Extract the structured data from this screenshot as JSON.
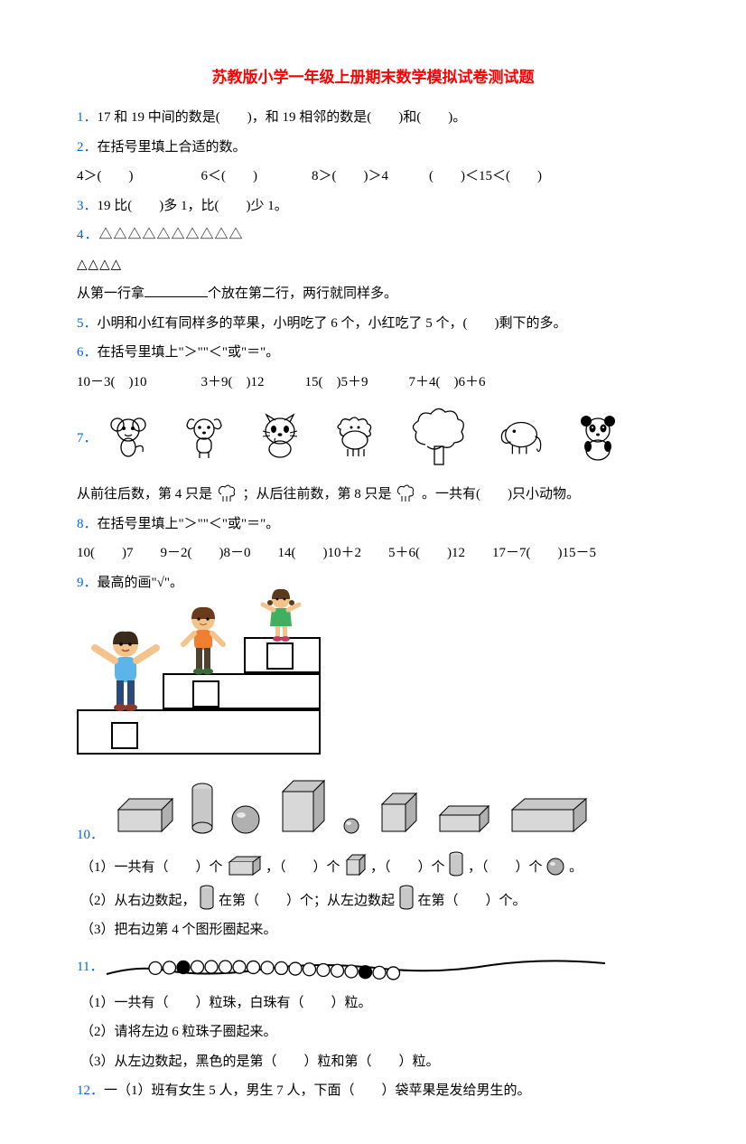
{
  "title": "苏教版小学一年级上册期末数学模拟试卷测试题",
  "accent_blue": "#0066dd",
  "accent_red": "#ff0000",
  "q1": {
    "num": "1．",
    "text": "17 和 19 中间的数是(　　)，和 19 相邻的数是(　　)和(　　)。"
  },
  "q2": {
    "num": "2．",
    "text": "在括号里填上合适的数。",
    "row": "4＞(　　)　　　　　6＜(　　)　　　　8＞(　　)＞4　　　(　　)＜15＜(　　)"
  },
  "q3": {
    "num": "3．",
    "text": "19 比(　　)多 1，比(　　)少 1。"
  },
  "q4": {
    "num": "4．",
    "row1": "△△△△△△△△△△",
    "row2": "△△△△",
    "line": "从第一行拿",
    "line_end": "个放在第二行，两行就同样多。"
  },
  "q5": {
    "num": "5．",
    "text": "小明和小红有同样多的苹果，小明吃了 6 个，小红吃了 5 个，(　　)剩下的多。"
  },
  "q6": {
    "num": "6．",
    "text": "在括号里填上\"＞\"\"＜\"或\"＝\"。",
    "row": "10－3(　)10　　　　3＋9(　)12　　　15(　)5＋9　　　7＋4(　)6＋6"
  },
  "q7": {
    "num": "7．",
    "text_a": "从前往后数，第 4 只是",
    "text_b": "；从后往前数，第 8 只是",
    "text_c": "。一共有(　　)只小动物。",
    "animals": [
      "monkey",
      "dog",
      "cat",
      "sheep",
      "tree",
      "elephant",
      "panda"
    ]
  },
  "q8": {
    "num": "8．",
    "text": "在括号里填上\"＞\"\"＜\"或\"＝\"。",
    "row": "10(　　)7　　9－2(　　)8－0　　14(　　)10＋2　　5＋6(　　)12　　17－7(　　)15－5"
  },
  "q9": {
    "num": "9．",
    "text": "最高的画\"√\"。"
  },
  "q10": {
    "num": "10．",
    "sub1_a": "（1）一共有（　　）个",
    "sub1_b": "，（　　）个",
    "sub1_c": "，（　　）个",
    "sub1_d": "，（　　）个",
    "sub1_e": "。",
    "sub2_a": "（2）从右边数起，",
    "sub2_b": "在第（　　）个；从左边数起",
    "sub2_c": "在第（　　）个。",
    "sub3": "（3）把右边第 4 个图形圈起来。"
  },
  "q11": {
    "num": "11．",
    "sub1": "（1）一共有（　　）粒珠，白珠有（　　）粒。",
    "sub2": "（2）请将左边 6 粒珠子圈起来。",
    "sub3": "（3）从左边数起，黑色的是第（　　）粒和第（　　）粒。"
  },
  "q12": {
    "num": "12．",
    "text": "一（1）班有女生 5 人，男生 7 人，下面（　　）袋苹果是发给男生的。"
  },
  "bead_count": 18,
  "black_beads": [
    2,
    15
  ]
}
